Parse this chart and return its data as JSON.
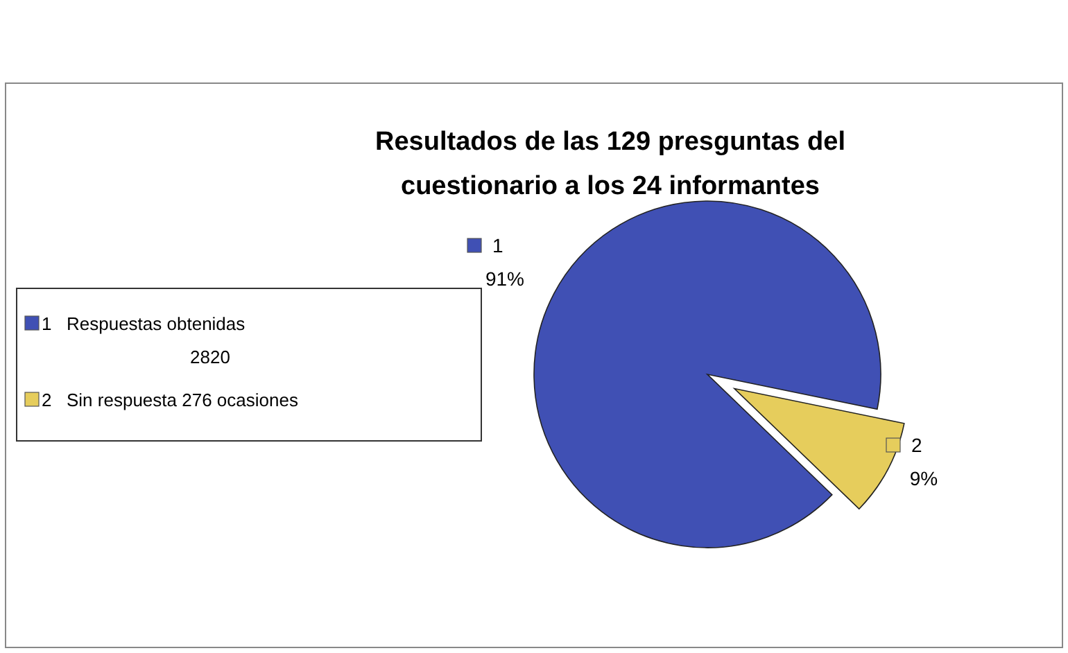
{
  "chart_data": {
    "type": "pie",
    "title": "Resultados de las 129 presguntas del cuestionario a los 24 informantes",
    "categories": [
      "1",
      "2"
    ],
    "values": [
      91,
      9
    ],
    "colors": [
      "#4050b4",
      "#e6cd5c"
    ],
    "value_labels": [
      "91%",
      "9%"
    ],
    "legend": "left",
    "annotations": [
      "Respuestas obtenidas 2820",
      "Sin respuesta 276 ocasiones"
    ]
  }
}
